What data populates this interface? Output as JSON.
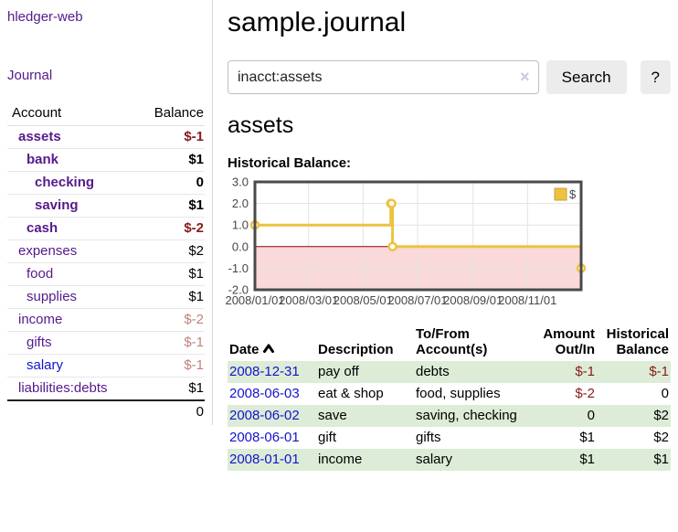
{
  "app": {
    "title": "hledger-web"
  },
  "sidebar": {
    "journal_link": "Journal",
    "accounts_table": {
      "account_header": "Account",
      "balance_header": "Balance",
      "rows": [
        {
          "name": "assets",
          "depth": 1,
          "bold": true,
          "name_style": "purple",
          "balance": "$-1",
          "balance_style": "neg-strong"
        },
        {
          "name": "bank",
          "depth": 2,
          "bold": true,
          "name_style": "purple",
          "balance": "$1",
          "balance_style": "plain"
        },
        {
          "name": "checking",
          "depth": 3,
          "bold": true,
          "name_style": "purple",
          "balance": "0",
          "balance_style": "plain"
        },
        {
          "name": "saving",
          "depth": 3,
          "bold": true,
          "name_style": "purple",
          "balance": "$1",
          "balance_style": "plain"
        },
        {
          "name": "cash",
          "depth": 2,
          "bold": true,
          "name_style": "purple",
          "balance": "$-2",
          "balance_style": "neg-strong"
        },
        {
          "name": "expenses",
          "depth": 1,
          "bold": false,
          "name_style": "purple",
          "balance": "$2",
          "balance_style": "plain"
        },
        {
          "name": "food",
          "depth": 2,
          "bold": false,
          "name_style": "purple",
          "balance": "$1",
          "balance_style": "plain"
        },
        {
          "name": "supplies",
          "depth": 2,
          "bold": false,
          "name_style": "purple",
          "balance": "$1",
          "balance_style": "plain"
        },
        {
          "name": "income",
          "depth": 1,
          "bold": false,
          "name_style": "purple",
          "balance": "$-2",
          "balance_style": "neg-soft"
        },
        {
          "name": "gifts",
          "depth": 2,
          "bold": false,
          "name_style": "purple",
          "balance": "$-1",
          "balance_style": "neg-soft"
        },
        {
          "name": "salary",
          "depth": 2,
          "bold": false,
          "name_style": "blue",
          "balance": "$-1",
          "balance_style": "neg-soft"
        },
        {
          "name": "liabilities:debts",
          "depth": 1,
          "bold": false,
          "name_style": "purple",
          "balance": "$1",
          "balance_style": "plain"
        }
      ],
      "total": "0"
    }
  },
  "header": {
    "title": "sample.journal"
  },
  "search": {
    "value": "inacct:assets",
    "clear_icon": "×",
    "button_label": "Search",
    "help_label": "?"
  },
  "account_page": {
    "title": "assets",
    "chart_label": "Historical Balance:"
  },
  "chart_data": {
    "type": "line",
    "style": "step",
    "title": "Historical Balance",
    "series": [
      {
        "name": "$",
        "color": "#edc240",
        "x": [
          "2008-01-01",
          "2008-06-01",
          "2008-06-02",
          "2008-06-03",
          "2008-12-31"
        ],
        "values": [
          1,
          2,
          2,
          0,
          -1
        ]
      }
    ],
    "xlim": [
      "2008-01-01",
      "2008-12-31"
    ],
    "ylim": [
      -2,
      3
    ],
    "yticks": [
      3.0,
      2.0,
      1.0,
      0.0,
      -1.0,
      -2.0
    ],
    "xticks": [
      {
        "date": "2008-01-01",
        "label": "2008/01/01"
      },
      {
        "date": "2008-03-01",
        "label": "2008/03/01"
      },
      {
        "date": "2008-05-01",
        "label": "2008/05/01"
      },
      {
        "date": "2008-07-01",
        "label": "2008/07/01"
      },
      {
        "date": "2008-09-01",
        "label": "2008/09/01"
      },
      {
        "date": "2008-11-01",
        "label": "2008/11/01"
      }
    ],
    "legend": {
      "label": "$",
      "position": "top-right"
    },
    "grid": true,
    "colors": {
      "negative_region_fill": "#f9d9d9",
      "zero_line": "#8b0000",
      "gridline": "#e3e3e3",
      "border": "#4a4a4a",
      "marker_fill": "#ffffff"
    }
  },
  "register_table": {
    "headers": {
      "date": "Date",
      "description": "Description",
      "accounts": "To/From Account(s)",
      "amount": "Amount Out/In",
      "balance": "Historical Balance"
    },
    "rows": [
      {
        "date": "2008-12-31",
        "description": "pay off",
        "accounts": "debts",
        "amount": "$-1",
        "amount_style": "neg",
        "balance": "$-1",
        "balance_style": "neg",
        "shaded": true
      },
      {
        "date": "2008-06-03",
        "description": "eat & shop",
        "accounts": "food, supplies",
        "amount": "$-2",
        "amount_style": "neg",
        "balance": "0",
        "balance_style": "plain",
        "shaded": false
      },
      {
        "date": "2008-06-02",
        "description": "save",
        "accounts": "saving, checking",
        "amount": "0",
        "amount_style": "plain",
        "balance": "$2",
        "balance_style": "plain",
        "shaded": true
      },
      {
        "date": "2008-06-01",
        "description": "gift",
        "accounts": "gifts",
        "amount": "$1",
        "amount_style": "plain",
        "balance": "$2",
        "balance_style": "plain",
        "shaded": false
      },
      {
        "date": "2008-01-01",
        "description": "income",
        "accounts": "salary",
        "amount": "$1",
        "amount_style": "plain",
        "balance": "$1",
        "balance_style": "plain",
        "shaded": true
      }
    ]
  },
  "colors": {
    "link_purple": "#551a8b",
    "link_blue": "#1414cc",
    "negative_strong": "#8b1a1a",
    "negative_soft": "#c0807e",
    "row_shade_green": "#dcecd7",
    "series_gold": "#edc240"
  }
}
